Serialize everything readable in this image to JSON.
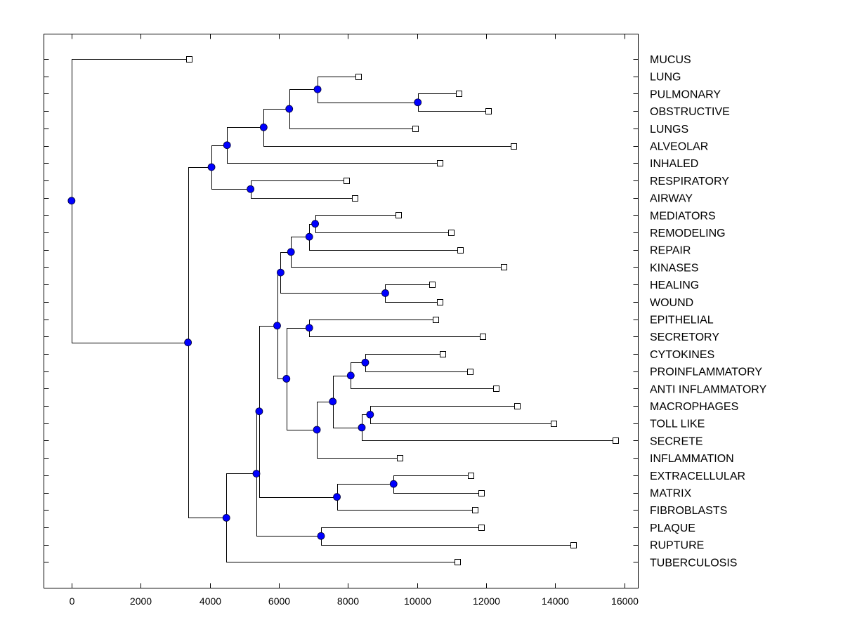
{
  "colors": {
    "node": "#0000ff",
    "leaf_fill": "#ffffff",
    "line": "#000000"
  },
  "chart_data": {
    "type": "dendrogram",
    "title": "",
    "xlabel": "",
    "ylabel": "",
    "xlim": [
      -800,
      16400
    ],
    "xticks": [
      0,
      2000,
      4000,
      6000,
      8000,
      10000,
      12000,
      14000,
      16000
    ],
    "leaves": [
      {
        "label": "MUCUS",
        "x": 3400
      },
      {
        "label": "LUNG",
        "x": 8300
      },
      {
        "label": "PULMONARY",
        "x": 11200
      },
      {
        "label": "OBSTRUCTIVE",
        "x": 12050
      },
      {
        "label": "LUNGS",
        "x": 9950
      },
      {
        "label": "ALVEOLAR",
        "x": 12800
      },
      {
        "label": "INHALED",
        "x": 10650
      },
      {
        "label": "RESPIRATORY",
        "x": 7950
      },
      {
        "label": "AIRWAY",
        "x": 8200
      },
      {
        "label": "MEDIATORS",
        "x": 9450
      },
      {
        "label": "REMODELING",
        "x": 10980
      },
      {
        "label": "REPAIR",
        "x": 11250
      },
      {
        "label": "KINASES",
        "x": 12500
      },
      {
        "label": "HEALING",
        "x": 10430
      },
      {
        "label": "WOUND",
        "x": 10650
      },
      {
        "label": "EPITHELIAL",
        "x": 10530
      },
      {
        "label": "SECRETORY",
        "x": 11900
      },
      {
        "label": "CYTOKINES",
        "x": 10730
      },
      {
        "label": "PROINFLAMMATORY",
        "x": 11530
      },
      {
        "label": "ANTI INFLAMMATORY",
        "x": 12280
      },
      {
        "label": "MACROPHAGES",
        "x": 12900
      },
      {
        "label": "TOLL LIKE",
        "x": 13950
      },
      {
        "label": "SECRETE",
        "x": 15730
      },
      {
        "label": "INFLAMMATION",
        "x": 9500
      },
      {
        "label": "EXTRACELLULAR",
        "x": 11550
      },
      {
        "label": "MATRIX",
        "x": 11850
      },
      {
        "label": "FIBROBLASTS",
        "x": 11680
      },
      {
        "label": "PLAQUE",
        "x": 11850
      },
      {
        "label": "RUPTURE",
        "x": 14520
      },
      {
        "label": "TUBERCULOSIS",
        "x": 11170
      }
    ],
    "merges": [
      {
        "id": "n1",
        "x": 10020,
        "children": [
          "leaf:2",
          "leaf:3"
        ]
      },
      {
        "id": "n2",
        "x": 7120,
        "children": [
          "leaf:1",
          "n1"
        ]
      },
      {
        "id": "n3",
        "x": 6300,
        "children": [
          "n2",
          "leaf:4"
        ]
      },
      {
        "id": "n4",
        "x": 5560,
        "children": [
          "n3",
          "leaf:5"
        ]
      },
      {
        "id": "n5",
        "x": 4500,
        "children": [
          "n4",
          "leaf:6"
        ]
      },
      {
        "id": "n6",
        "x": 5180,
        "children": [
          "leaf:7",
          "leaf:8"
        ]
      },
      {
        "id": "n7",
        "x": 4050,
        "children": [
          "n5",
          "n6"
        ]
      },
      {
        "id": "n8",
        "x": 7050,
        "children": [
          "leaf:9",
          "leaf:10"
        ]
      },
      {
        "id": "n9",
        "x": 6880,
        "children": [
          "n8",
          "leaf:11"
        ]
      },
      {
        "id": "n10",
        "x": 6350,
        "children": [
          "n9",
          "leaf:12"
        ]
      },
      {
        "id": "n11",
        "x": 9080,
        "children": [
          "leaf:13",
          "leaf:14"
        ]
      },
      {
        "id": "n12",
        "x": 6050,
        "children": [
          "n10",
          "n11"
        ]
      },
      {
        "id": "n13",
        "x": 6880,
        "children": [
          "leaf:15",
          "leaf:16"
        ]
      },
      {
        "id": "n14",
        "x": 8500,
        "children": [
          "leaf:17",
          "leaf:18"
        ]
      },
      {
        "id": "n15",
        "x": 8080,
        "children": [
          "n14",
          "leaf:19"
        ]
      },
      {
        "id": "n16",
        "x": 8640,
        "children": [
          "leaf:20",
          "leaf:21"
        ]
      },
      {
        "id": "n17",
        "x": 8400,
        "children": [
          "n16",
          "leaf:22"
        ]
      },
      {
        "id": "n18",
        "x": 7560,
        "children": [
          "n15",
          "n17"
        ]
      },
      {
        "id": "n19",
        "x": 7100,
        "children": [
          "n18",
          "leaf:23"
        ]
      },
      {
        "id": "n20",
        "x": 6220,
        "children": [
          "n13",
          "n19"
        ]
      },
      {
        "id": "n21",
        "x": 5950,
        "children": [
          "n12",
          "n20"
        ]
      },
      {
        "id": "n22",
        "x": 9320,
        "children": [
          "leaf:24",
          "leaf:25"
        ]
      },
      {
        "id": "n23",
        "x": 7680,
        "children": [
          "n22",
          "leaf:26"
        ]
      },
      {
        "id": "n24",
        "x": 5430,
        "children": [
          "n21",
          "n23"
        ]
      },
      {
        "id": "n25",
        "x": 7220,
        "children": [
          "leaf:27",
          "leaf:28"
        ]
      },
      {
        "id": "n26",
        "x": 5350,
        "children": [
          "n24",
          "n25"
        ]
      },
      {
        "id": "n27",
        "x": 4480,
        "children": [
          "n26",
          "leaf:29"
        ]
      },
      {
        "id": "n28",
        "x": 3370,
        "children": [
          "n7",
          "n27"
        ]
      },
      {
        "id": "n29",
        "x": 0,
        "children": [
          "leaf:0",
          "n28"
        ]
      }
    ]
  }
}
